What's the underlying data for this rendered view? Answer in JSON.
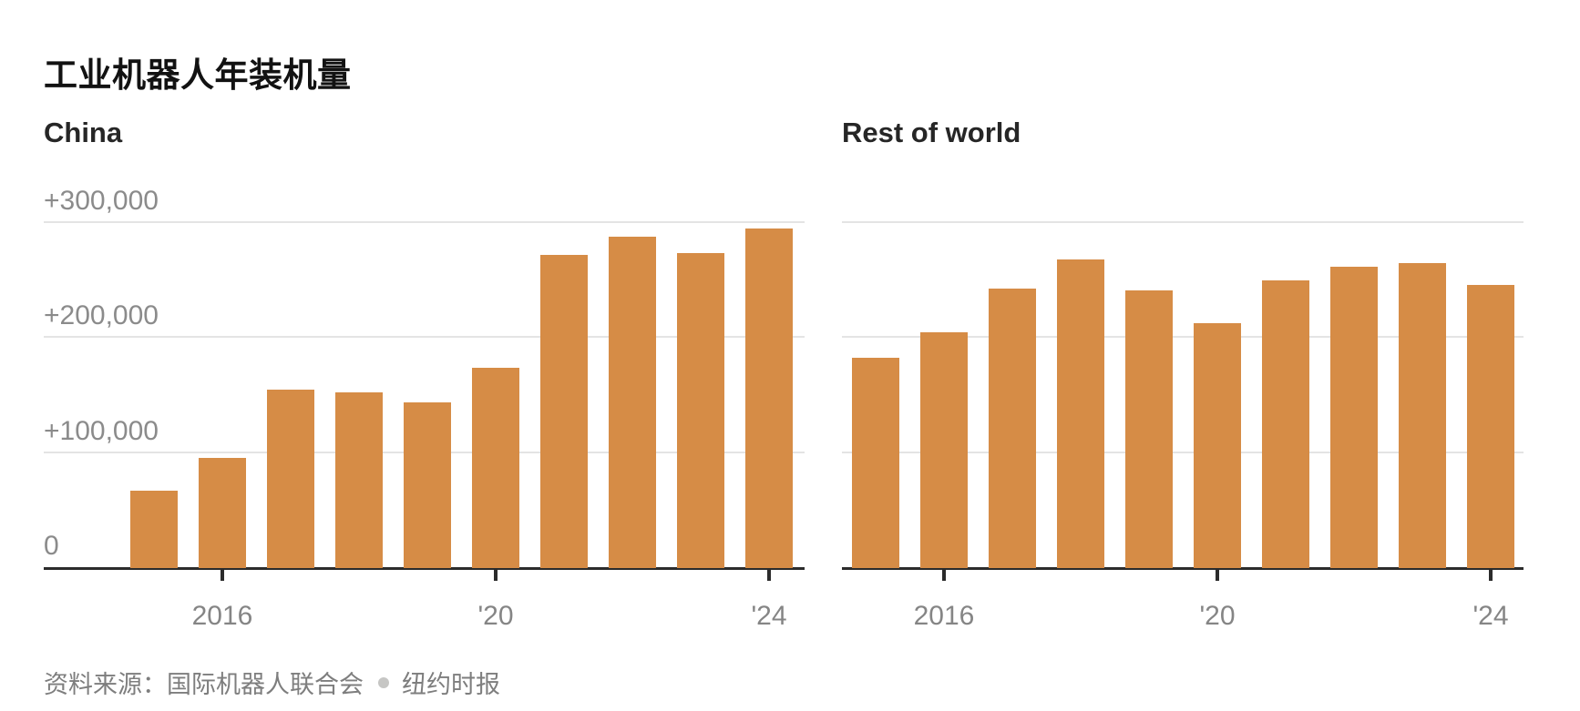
{
  "header": {
    "title": "工业机器人年装机量"
  },
  "source": {
    "prefix": "资料来源：国际机器人联合会",
    "publisher": "纽约时报"
  },
  "colors": {
    "bar": "#d68c46",
    "title": "#121212",
    "panel_title": "#262626",
    "axis_label": "#8b8b8b",
    "gridline": "#e4e4e4",
    "baseline": "#2b2b2b",
    "source_text": "#7e7e7e",
    "source_dot": "#c6c6c4"
  },
  "chart_data": [
    {
      "type": "bar",
      "title": "China",
      "x": [
        2015,
        2016,
        2017,
        2018,
        2019,
        2020,
        2021,
        2022,
        2023,
        2024
      ],
      "values": [
        67000,
        96000,
        155000,
        153000,
        144000,
        174000,
        272000,
        288000,
        274000,
        295000
      ],
      "x_tick_labels": [
        {
          "index": 1,
          "label": "2016"
        },
        {
          "index": 5,
          "label": "'20"
        },
        {
          "index": 9,
          "label": "'24"
        }
      ],
      "y_ticks": [
        {
          "value": 300000,
          "label": "+300,000"
        },
        {
          "value": 200000,
          "label": "+200,000"
        },
        {
          "value": 100000,
          "label": "+100,000"
        },
        {
          "value": 0,
          "label": "0"
        }
      ],
      "ylim": [
        0,
        344000
      ],
      "grid": true,
      "show_y_labels": true,
      "legend_position": "none"
    },
    {
      "type": "bar",
      "title": "Rest of world",
      "x": [
        2015,
        2016,
        2017,
        2018,
        2019,
        2020,
        2021,
        2022,
        2023,
        2024
      ],
      "values": [
        183000,
        205000,
        243000,
        268000,
        241000,
        213000,
        250000,
        262000,
        265000,
        246000
      ],
      "x_tick_labels": [
        {
          "index": 1,
          "label": "2016"
        },
        {
          "index": 5,
          "label": "'20"
        },
        {
          "index": 9,
          "label": "'24"
        }
      ],
      "y_ticks": [
        {
          "value": 300000,
          "label": "+300,000"
        },
        {
          "value": 200000,
          "label": "+200,000"
        },
        {
          "value": 100000,
          "label": "+100,000"
        },
        {
          "value": 0,
          "label": "0"
        }
      ],
      "ylim": [
        0,
        344000
      ],
      "grid": true,
      "show_y_labels": false,
      "legend_position": "none"
    }
  ]
}
